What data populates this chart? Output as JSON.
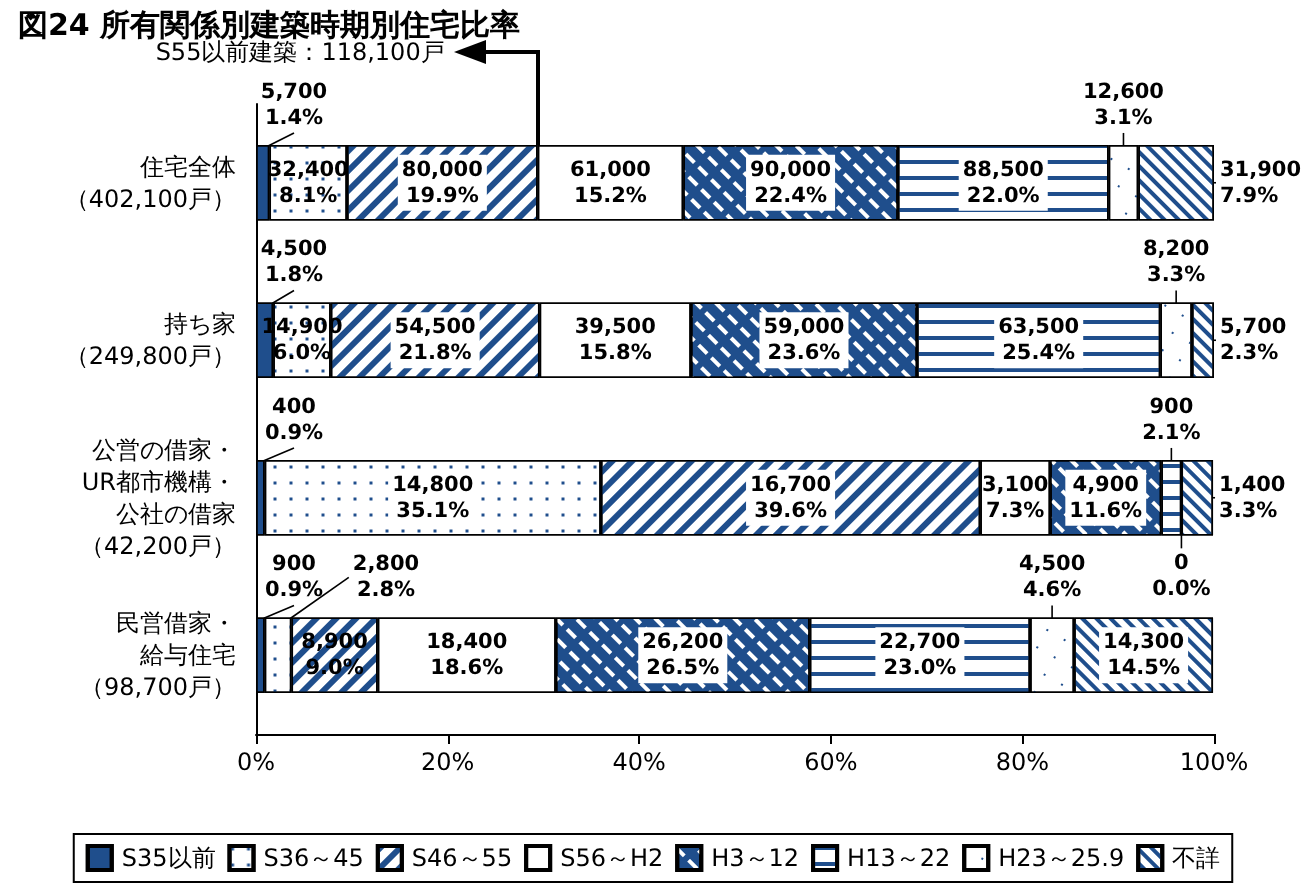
{
  "chart_data": {
    "type": "bar",
    "orientation": "horizontal",
    "stacked": true,
    "title": "図24 所有関係別建築時期別住宅比率",
    "categories": [
      "住宅全体（402,100戸）",
      "持ち家（249,800戸）",
      "公営の借家・UR都市機構・公社の借家（42,200戸）",
      "民営借家・給与住宅（98,700戸）"
    ],
    "series": [
      {
        "name": "S35以前",
        "color": "#1f4e8c",
        "values": [
          1.4,
          1.8,
          0.9,
          0.9
        ],
        "value_labels": [
          "5,700\n1.4%",
          "4,500\n1.8%",
          "400\n0.9%",
          "900\n0.9%"
        ]
      },
      {
        "name": "S36～45",
        "color": "#ffffff",
        "values": [
          8.1,
          6.0,
          35.1,
          2.8
        ],
        "value_labels": [
          "32,400\n8.1%",
          "14,900\n6.0%",
          "14,800\n35.1%",
          "2,800\n2.8%"
        ]
      },
      {
        "name": "S46～55",
        "color": "#ffffff",
        "values": [
          19.9,
          21.8,
          39.6,
          9.0
        ],
        "value_labels": [
          "80,000\n19.9%",
          "54,500\n21.8%",
          "16,700\n39.6%",
          "8,900\n9.0%"
        ]
      },
      {
        "name": "S56～H2",
        "color": "#ffffff",
        "values": [
          15.2,
          15.8,
          7.3,
          18.6
        ],
        "value_labels": [
          "61,000\n15.2%",
          "39,500\n15.8%",
          "3,100\n7.3%",
          "18,400\n18.6%"
        ]
      },
      {
        "name": "H3～12",
        "color": "#1f4e8c",
        "values": [
          22.4,
          23.6,
          11.6,
          26.5
        ],
        "value_labels": [
          "90,000\n22.4%",
          "59,000\n23.6%",
          "4,900\n11.6%",
          "26,200\n26.5%"
        ]
      },
      {
        "name": "H13～22",
        "color": "#ffffff",
        "values": [
          22.0,
          25.4,
          2.1,
          23.0
        ],
        "value_labels": [
          "88,500\n22.0%",
          "63,500\n25.4%",
          "900\n2.1%",
          "22,700\n23.0%"
        ]
      },
      {
        "name": "H23～25.9",
        "color": "#ffffff",
        "values": [
          3.1,
          3.3,
          0,
          4.6
        ],
        "value_labels": [
          "12,600\n3.1%",
          "8,200\n3.3%",
          "0\n0.0%",
          "4,500\n4.6%"
        ]
      },
      {
        "name": "不詳",
        "color": "#ffffff",
        "values": [
          7.9,
          2.3,
          3.3,
          14.5
        ],
        "value_labels": [
          "31,900\n7.9%",
          "5,700\n2.3%",
          "1,400\n3.3%",
          "14,300\n14.5%"
        ]
      }
    ],
    "xlim": [
      0,
      100
    ],
    "xticks": [
      {
        "value": 0,
        "label": "0%"
      },
      {
        "value": 20,
        "label": "20%"
      },
      {
        "value": 40,
        "label": "40%"
      },
      {
        "value": 60,
        "label": "60%"
      },
      {
        "value": 80,
        "label": "80%"
      },
      {
        "value": 100,
        "label": "100%"
      }
    ],
    "grid": false,
    "legend": "bottom",
    "annotations": [
      "S55以前建築：118,100戸"
    ]
  }
}
